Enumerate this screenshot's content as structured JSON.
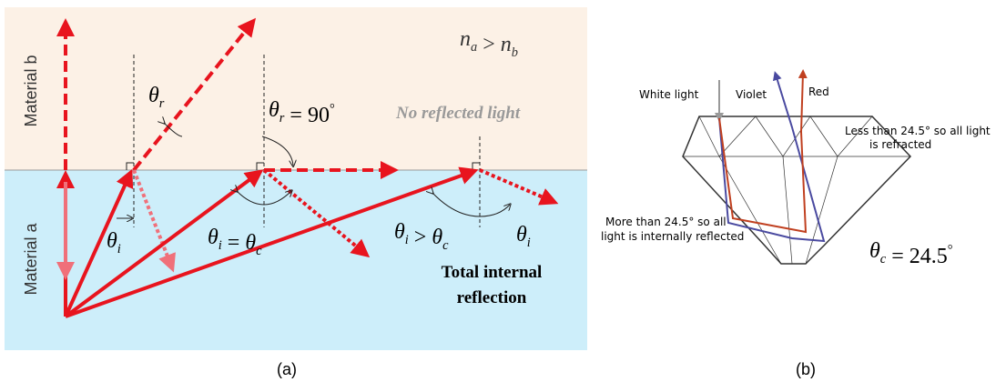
{
  "panel_a": {
    "caption": "(a)",
    "condition": [
      {
        "base": "n",
        "sub": "a"
      },
      ">",
      {
        "base": "n",
        "sub": "b"
      }
    ],
    "material_b": "Material b",
    "material_a": "Material a",
    "no_reflected_light": "No reflected light",
    "total_internal_reflection": [
      "Total internal",
      "reflection"
    ],
    "angle_labels": [
      [
        {
          "base": "θ",
          "sub": "r"
        }
      ],
      [
        {
          "base": "θ",
          "sub": "r"
        },
        "=",
        {
          "base": "90",
          "sup": "°"
        }
      ],
      [
        {
          "base": "θ",
          "sub": "i"
        }
      ],
      [
        {
          "base": "θ",
          "sub": "i"
        },
        "=",
        {
          "base": "θ",
          "sub": "c"
        }
      ],
      [
        {
          "base": "θ",
          "sub": "i"
        },
        ">",
        {
          "base": "θ",
          "sub": "c"
        }
      ],
      [
        {
          "base": "θ",
          "sub": "i"
        }
      ]
    ]
  },
  "panel_b": {
    "caption": "(b)",
    "white_light": "White light",
    "violet": "Violet",
    "red": "Red",
    "refracted_note": [
      "Less than 24.5° so all light",
      "is refracted"
    ],
    "reflected_note": [
      "More than 24.5° so all",
      "light is internally reflected"
    ],
    "critical_angle": [
      {
        "base": "θ",
        "sub": "c"
      },
      "=",
      {
        "base": "24.5",
        "sup": "°"
      }
    ]
  }
}
